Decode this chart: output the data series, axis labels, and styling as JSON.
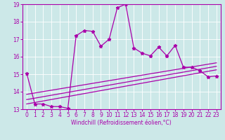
{
  "xlabel": "Windchill (Refroidissement éolien,°C)",
  "bg_color": "#cce8e8",
  "line_color": "#aa00aa",
  "xlim": [
    -0.5,
    23.5
  ],
  "ylim": [
    13,
    19
  ],
  "yticks": [
    13,
    14,
    15,
    16,
    17,
    18,
    19
  ],
  "xticks": [
    0,
    1,
    2,
    3,
    4,
    5,
    6,
    7,
    8,
    9,
    10,
    11,
    12,
    13,
    14,
    15,
    16,
    17,
    18,
    19,
    20,
    21,
    22,
    23
  ],
  "main_line_x": [
    0,
    1,
    2,
    3,
    4,
    5,
    6,
    7,
    8,
    9,
    10,
    11,
    12,
    13,
    14,
    15,
    16,
    17,
    18,
    19,
    20,
    21,
    22,
    23
  ],
  "main_line_y": [
    15.05,
    13.3,
    13.3,
    13.15,
    13.15,
    13.05,
    17.2,
    17.5,
    17.45,
    16.6,
    17.0,
    18.8,
    19.0,
    16.5,
    16.2,
    16.05,
    16.55,
    16.05,
    16.65,
    15.4,
    15.4,
    15.2,
    14.85,
    14.9
  ],
  "lower_line1_x": [
    0,
    23
  ],
  "lower_line1_y": [
    13.3,
    15.25
  ],
  "lower_line2_x": [
    0,
    23
  ],
  "lower_line2_y": [
    13.55,
    15.45
  ],
  "lower_line3_x": [
    0,
    23
  ],
  "lower_line3_y": [
    13.85,
    15.65
  ],
  "xlabel_fontsize": 5.5,
  "tick_fontsize": 5.5,
  "ytick_fontsize": 5.5
}
